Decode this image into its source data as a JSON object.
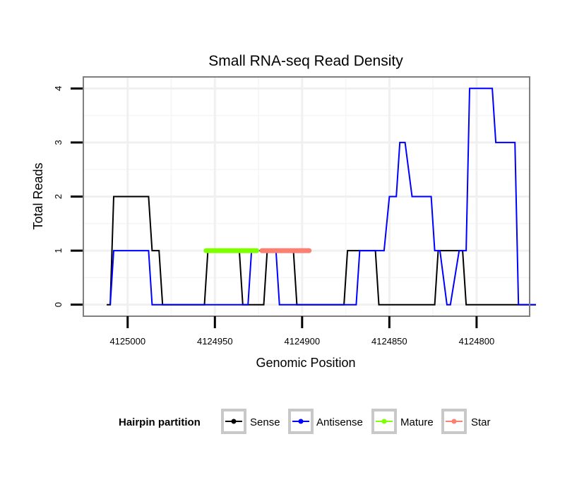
{
  "chart_data": {
    "type": "line",
    "title": "Small RNA-seq Read Density",
    "xlabel": "Genomic Position",
    "ylabel": "Total Reads",
    "x_reversed": true,
    "xlim": [
      4125025,
      4124770
    ],
    "ylim": [
      -0.2,
      4.2
    ],
    "x_ticks": [
      4125000,
      4124950,
      4124900,
      4124850,
      4124800
    ],
    "x_tick_labels": [
      "4125000",
      "4124950",
      "4124900",
      "4124850",
      "4124800"
    ],
    "y_ticks": [
      0,
      1,
      2,
      3,
      4
    ],
    "y_tick_labels": [
      "0",
      "1",
      "2",
      "3",
      "4"
    ],
    "grid": true,
    "legend": {
      "title": "Hairpin partition",
      "position": "bottom",
      "entries": [
        {
          "name": "Sense",
          "color": "#000000"
        },
        {
          "name": "Antisense",
          "color": "#0000ff"
        },
        {
          "name": "Mature",
          "color": "#7fff00"
        },
        {
          "name": "Star",
          "color": "#fa8072"
        }
      ]
    },
    "series": [
      {
        "name": "Sense",
        "color": "#000000",
        "x": [
          4125012,
          4125010,
          4125008,
          4125006,
          4124988,
          4124986,
          4124982,
          4124980,
          4124956,
          4124954,
          4124936,
          4124934,
          4124922,
          4124920,
          4124905,
          4124903,
          4124876,
          4124874,
          4124858,
          4124856,
          4124824,
          4124822,
          4124808,
          4124806,
          4124788,
          4124786,
          4124766
        ],
        "y": [
          0,
          0,
          2,
          2,
          2,
          1,
          1,
          0,
          0,
          1,
          1,
          0,
          0,
          1,
          1,
          0,
          0,
          1,
          1,
          0,
          0,
          1,
          1,
          0,
          0,
          0,
          0
        ]
      },
      {
        "name": "Antisense",
        "color": "#0000ff",
        "x": [
          4125010,
          4125008,
          4124988,
          4124986,
          4124955,
          4124931,
          4124929,
          4124915,
          4124913,
          4124869,
          4124867,
          4124853,
          4124850,
          4124846,
          4124844,
          4124841,
          4124837,
          4124826,
          4124824,
          4124821,
          4124817,
          4124815,
          4124810,
          4124806,
          4124804,
          4124791,
          4124789,
          4124778,
          4124776,
          4124768,
          4124766
        ],
        "y": [
          0,
          1,
          1,
          0,
          0,
          0,
          1,
          1,
          0,
          0,
          1,
          1,
          2,
          2,
          3,
          3,
          2,
          2,
          1,
          1,
          0,
          0,
          1,
          1,
          4,
          4,
          3,
          3,
          0,
          0,
          0
        ]
      },
      {
        "name": "Mature",
        "color": "#7fff00",
        "x": [
          4124955,
          4124926
        ],
        "y": [
          1,
          1
        ]
      },
      {
        "name": "Star",
        "color": "#fa8072",
        "x": [
          4124923,
          4124896
        ],
        "y": [
          1,
          1
        ]
      }
    ]
  }
}
